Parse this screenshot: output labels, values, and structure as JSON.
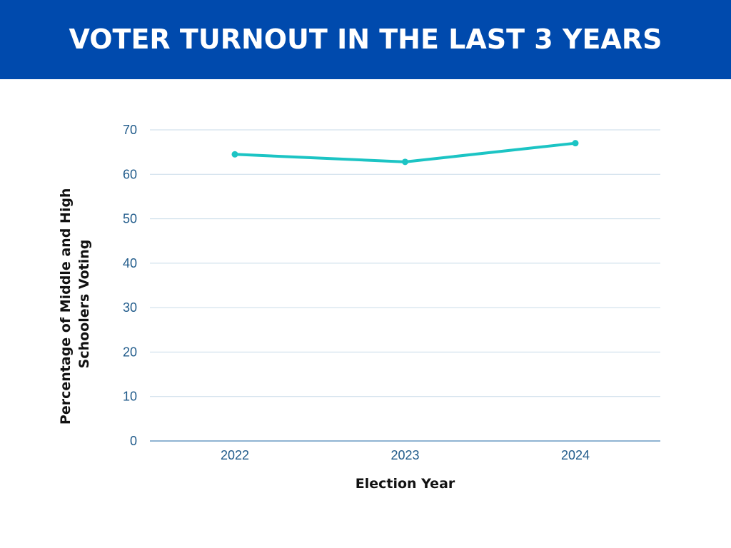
{
  "header": {
    "title": "Voter Turnout in the last 3 years"
  },
  "colors": {
    "header_bg": "#004aad",
    "title_text": "#ffffff",
    "line": "#1cc4c4",
    "grid": "#c9dbe9",
    "baseline": "#6a9ac4",
    "tick_text": "#1f5a8a"
  },
  "chart_data": {
    "type": "line",
    "title": "Voter Turnout in the last 3 years",
    "xlabel": "Election Year",
    "ylabel_lines": [
      "Percentage of Middle and High",
      "Schoolers Voting"
    ],
    "categories": [
      "2022",
      "2023",
      "2024"
    ],
    "series": [
      {
        "values": [
          64.5,
          62.8,
          67.0
        ]
      }
    ],
    "ylim": [
      0,
      70
    ],
    "yticks": [
      "0",
      "10",
      "20",
      "30",
      "40",
      "50",
      "60",
      "70"
    ],
    "grid": true,
    "legend": "none"
  }
}
